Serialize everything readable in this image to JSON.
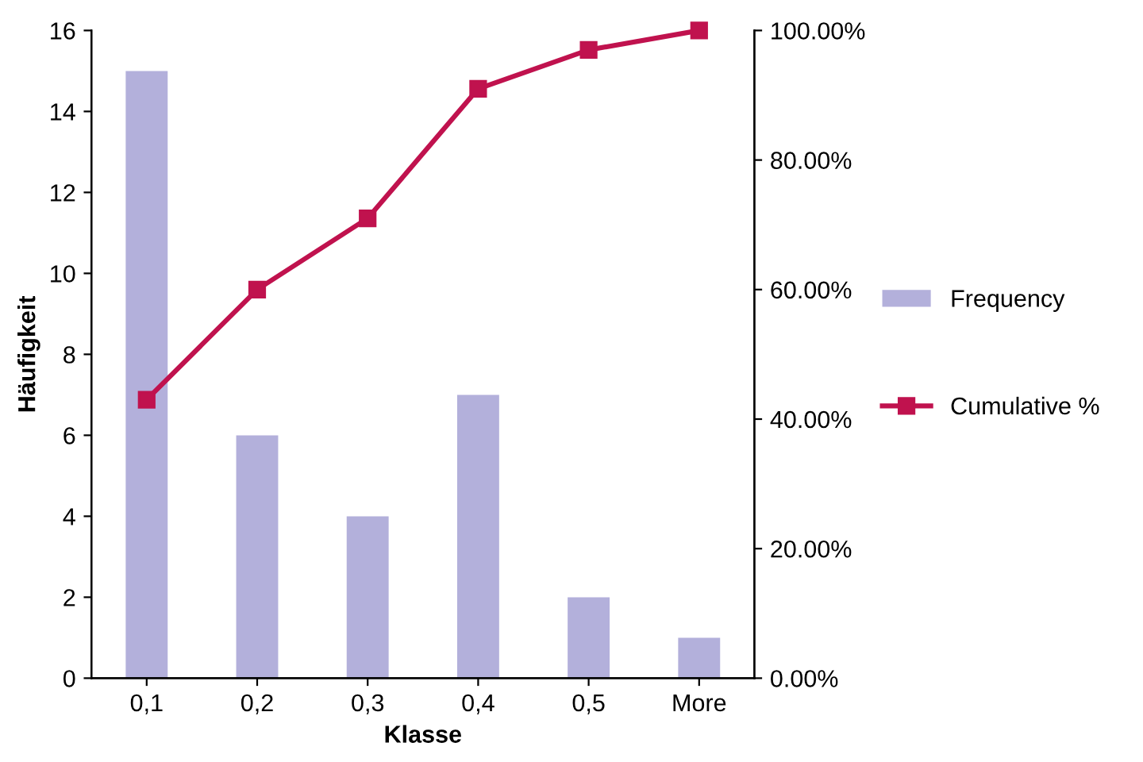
{
  "chart_data": {
    "type": "bar",
    "xlabel": "Klasse",
    "ylabel": "Häufigkeit",
    "categories": [
      "0,1",
      "0,2",
      "0,3",
      "0,4",
      "0,5",
      "More"
    ],
    "series": [
      {
        "name": "Frequency",
        "color": "#b3b0db",
        "values": [
          15,
          6,
          4,
          7,
          2,
          1
        ]
      },
      {
        "name": "Cumulative %",
        "type": "line",
        "axis": "y2",
        "color": "#c0124e",
        "marker": "square",
        "line_style": "solid",
        "values": [
          43,
          60,
          71,
          91,
          97,
          100
        ]
      }
    ],
    "ylim": [
      0,
      16
    ],
    "yticks": [
      0,
      2,
      4,
      6,
      8,
      10,
      12,
      14,
      16
    ],
    "y2lim": [
      0,
      100
    ],
    "y2ticks": [
      {
        "value": 0,
        "label": "0.00%"
      },
      {
        "value": 20,
        "label": "20.00%"
      },
      {
        "value": 40,
        "label": "40.00%"
      },
      {
        "value": 60,
        "label": "60.00%"
      },
      {
        "value": 80,
        "label": "80.00%"
      },
      {
        "value": 100,
        "label": "100.00%"
      }
    ],
    "grid": false,
    "legend": "right"
  }
}
